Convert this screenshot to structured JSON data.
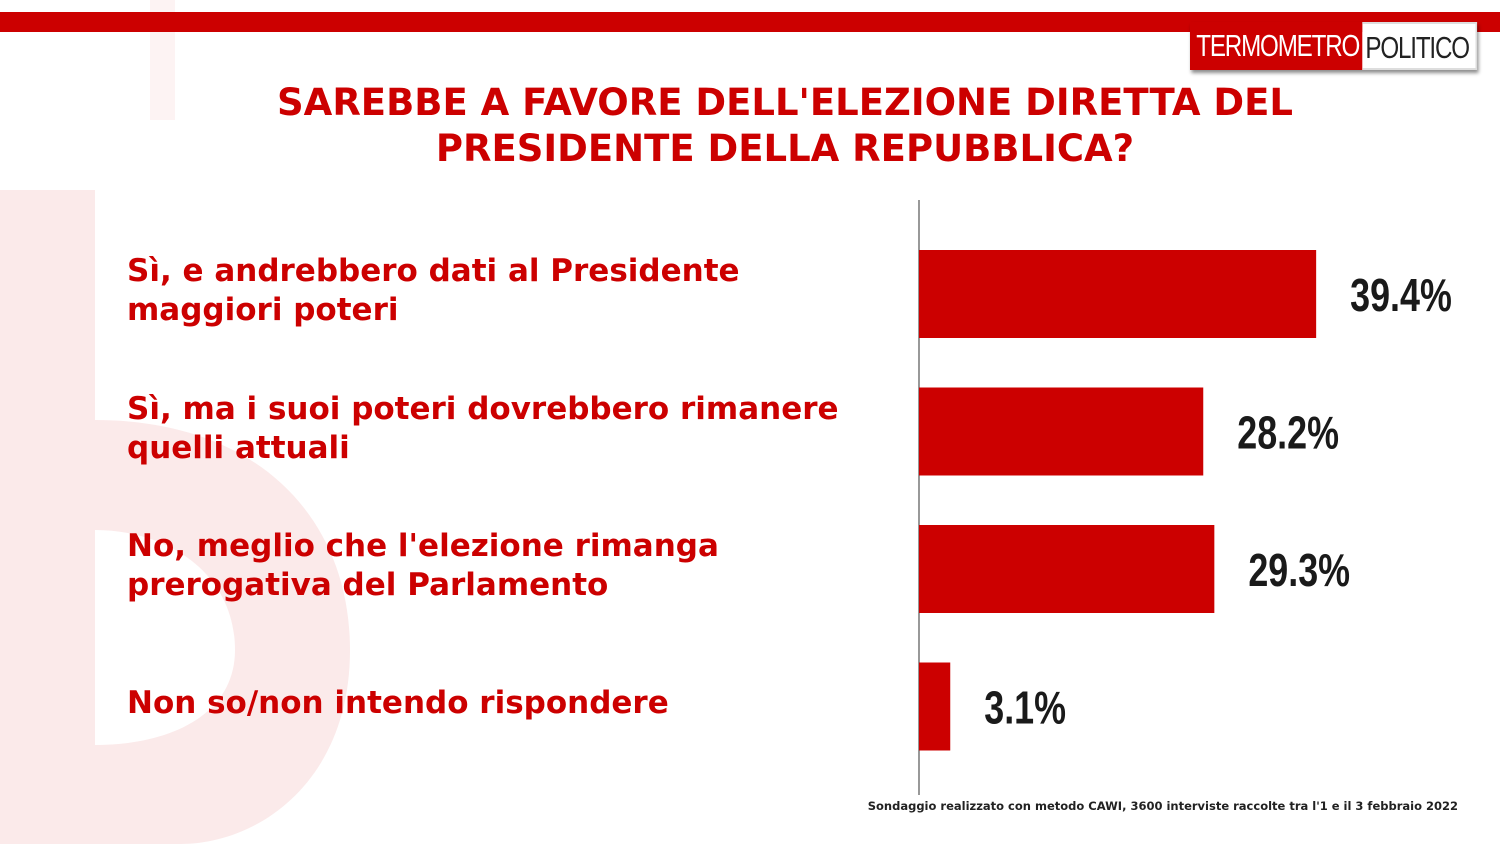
{
  "logo": {
    "part1": "TERMOMETRO",
    "part2": "POLITICO"
  },
  "title": {
    "line1": "SAREBBE A FAVORE DELL'ELEZIONE DIRETTA DEL",
    "line2": "PRESIDENTE DELLA REPUBBLICA?"
  },
  "colors": {
    "accent": "#cc0000",
    "watermark": "#fbeaea",
    "axis": "#555555",
    "value_text": "#1a1a1a"
  },
  "footnote": "Sondaggio realizzato con metodo CAWI, 3600 interviste raccolte tra l'1 e il 3 febbraio 2022",
  "chart_data": {
    "type": "bar",
    "orientation": "horizontal",
    "categories": [
      [
        "Sì, e andrebbero dati al Presidente",
        "maggiori poteri"
      ],
      [
        "Sì, ma i suoi poteri dovrebbero rimanere",
        "quelli attuali"
      ],
      [
        "No, meglio che l'elezione rimanga",
        "prerogativa del Parlamento"
      ],
      [
        "Non so/non intendo rispondere"
      ]
    ],
    "values": [
      39.4,
      28.2,
      29.3,
      3.1
    ],
    "value_labels": [
      "39.4%",
      "28.2%",
      "29.3%",
      "3.1%"
    ],
    "unit": "%",
    "bar_color": "#cc0000",
    "grid": false,
    "legend": "none"
  }
}
